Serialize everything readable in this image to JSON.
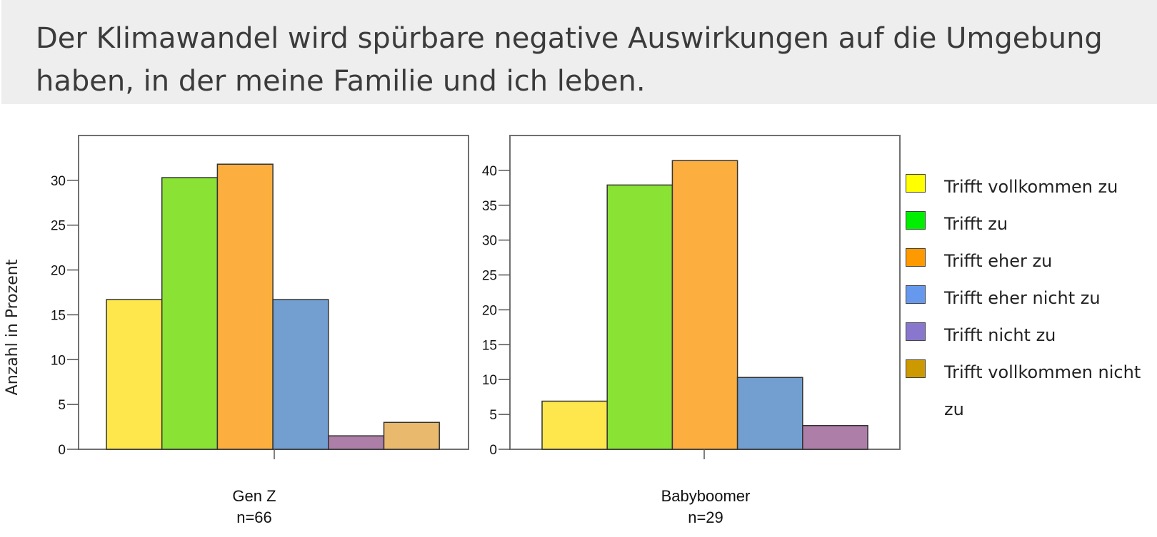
{
  "title": "Der Klimawandel wird spürbare negative Auswirkungen auf die Umgebung haben, in der meine Familie und ich leben.",
  "legend": [
    {
      "label": "Trifft vollkommen zu",
      "color": "#ffff00"
    },
    {
      "label": "Trifft zu",
      "color": "#00ee00"
    },
    {
      "label": "Trifft eher zu",
      "color": "#ff9900"
    },
    {
      "label": "Trifft eher nicht zu",
      "color": "#6699ee"
    },
    {
      "label": "Trifft nicht zu",
      "color": "#8877cc"
    },
    {
      "label": "Trifft vollkommen nicht zu",
      "color": "#cc9900"
    }
  ],
  "chart_data": [
    {
      "type": "bar",
      "ylabel": "Anzahl in Prozent",
      "xlabel": "Gen Z",
      "xlabel_n": "n=66",
      "categories": [
        "Trifft vollkommen zu",
        "Trifft zu",
        "Trifft eher zu",
        "Trifft eher nicht zu",
        "Trifft nicht zu",
        "Trifft vollkommen nicht zu"
      ],
      "values": [
        16.7,
        30.3,
        31.8,
        16.7,
        1.5,
        3.0
      ],
      "colors": [
        "#fde74c",
        "#8ae234",
        "#fcaf3e",
        "#729fcf",
        "#ad7fa8",
        "#e9b96e"
      ],
      "ylim": [
        0,
        35
      ],
      "yticks": [
        0,
        5,
        10,
        15,
        20,
        25,
        30
      ]
    },
    {
      "type": "bar",
      "ylabel": "",
      "xlabel": "Babyboomer",
      "xlabel_n": "n=29",
      "categories": [
        "Trifft vollkommen zu",
        "Trifft zu",
        "Trifft eher zu",
        "Trifft eher nicht zu",
        "Trifft nicht zu"
      ],
      "values": [
        6.9,
        37.9,
        41.4,
        10.3,
        3.4
      ],
      "colors": [
        "#fde74c",
        "#8ae234",
        "#fcaf3e",
        "#729fcf",
        "#ad7fa8"
      ],
      "ylim": [
        0,
        45
      ],
      "yticks": [
        0,
        5,
        10,
        15,
        20,
        25,
        30,
        35,
        40
      ]
    }
  ]
}
